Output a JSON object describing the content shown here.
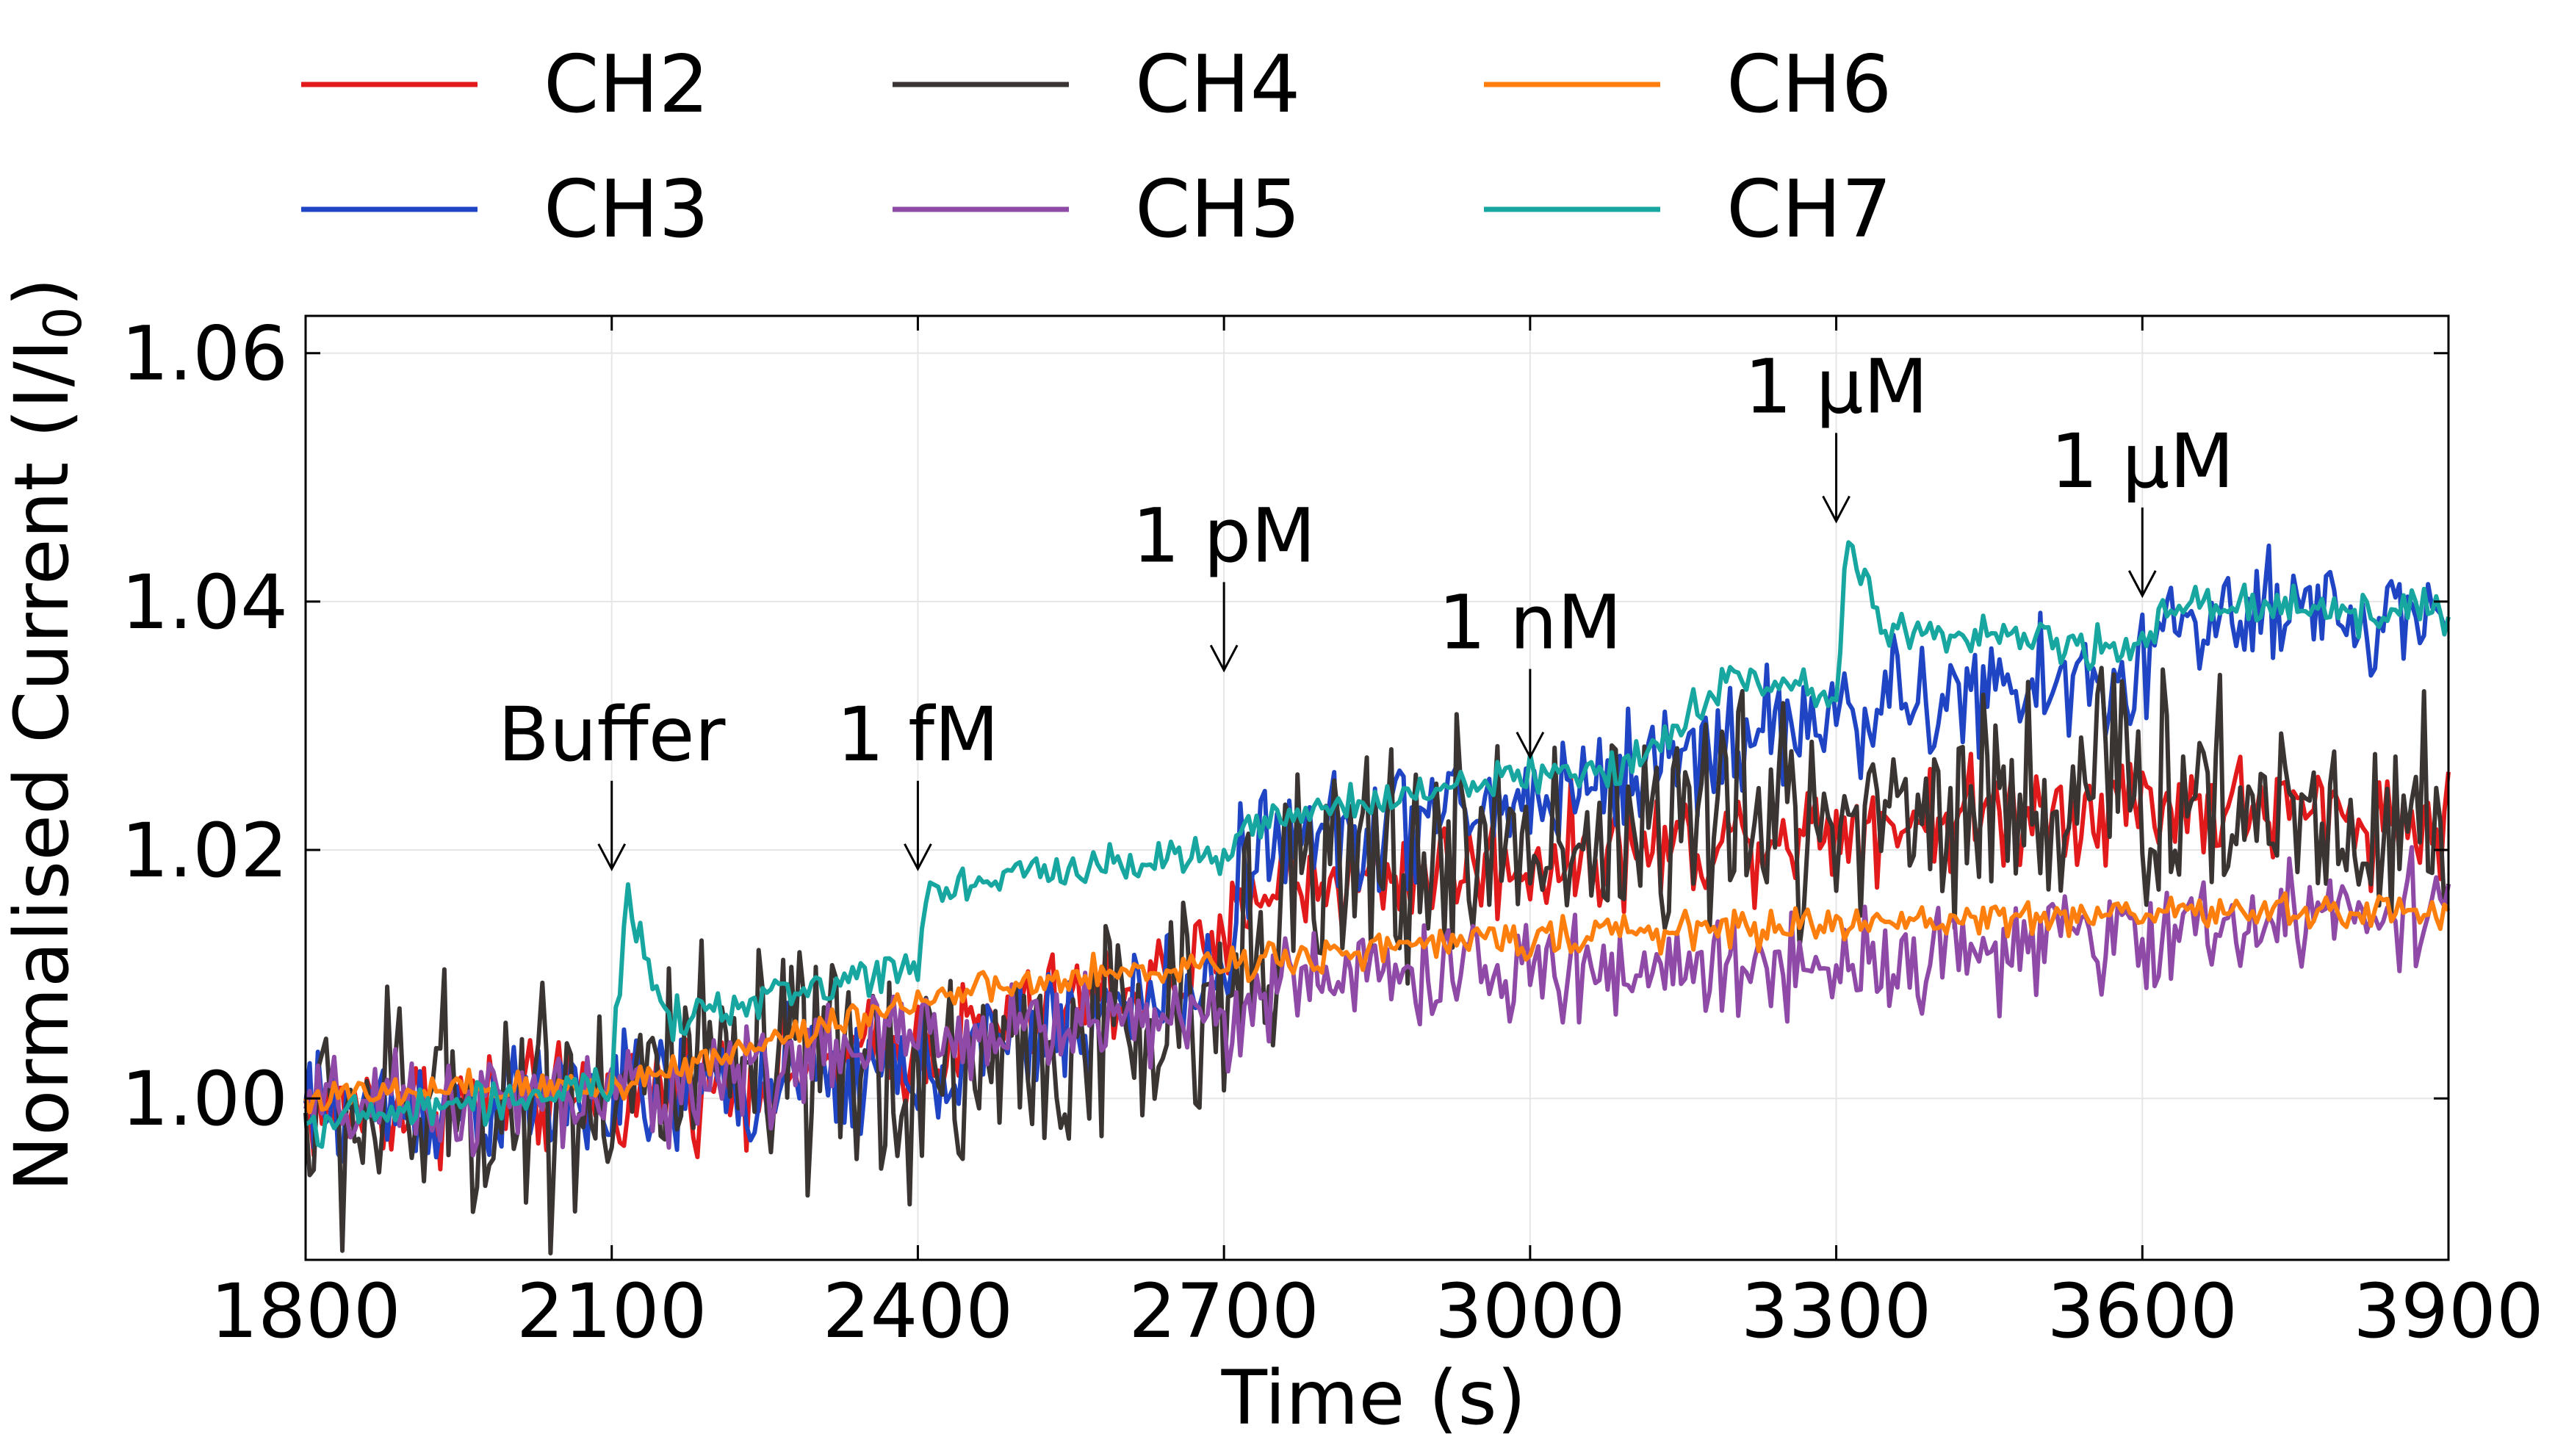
{
  "chart_data": {
    "type": "line",
    "title": "",
    "xlabel": "Time (s)",
    "ylabel_main": "Normalised Current (I/I",
    "ylabel_sub": "0",
    "ylabel_end": ")",
    "xlim": [
      1800,
      3900
    ],
    "ylim": [
      0.987,
      1.063
    ],
    "xticks": [
      1800,
      2100,
      2400,
      2700,
      3000,
      3300,
      3600,
      3900
    ],
    "xtick_labels": [
      "1800",
      "2100",
      "2400",
      "2700",
      "3000",
      "3300",
      "3600",
      "3900"
    ],
    "yticks": [
      1.0,
      1.02,
      1.04,
      1.06
    ],
    "ytick_labels": [
      "1.00",
      "1.02",
      "1.04",
      "1.06"
    ],
    "grid": true,
    "legend_position": "top, above plot, 3 columns",
    "legend": [
      {
        "label": "CH2",
        "color": "#e31a1c"
      },
      {
        "label": "CH3",
        "color": "#1f45c4"
      },
      {
        "label": "CH4",
        "color": "#3a3532"
      },
      {
        "label": "CH5",
        "color": "#8e4aa6"
      },
      {
        "label": "CH6",
        "color": "#ff7f0e"
      },
      {
        "label": "CH7",
        "color": "#17a6a0"
      }
    ],
    "series": [
      {
        "name": "CH2",
        "color": "#e31a1c",
        "noise": 0.0022,
        "x": [
          1800,
          2100,
          2400,
          2700,
          2720,
          3000,
          3300,
          3600,
          3900
        ],
        "y": [
          0.999,
          1.0,
          1.004,
          1.011,
          1.017,
          1.019,
          1.022,
          1.024,
          1.022
        ]
      },
      {
        "name": "CH3",
        "color": "#1f45c4",
        "noise": 0.0025,
        "x": [
          1800,
          2100,
          2400,
          2700,
          2720,
          3000,
          3200,
          3300,
          3600,
          3620,
          3900
        ],
        "y": [
          0.999,
          1.0,
          1.002,
          1.01,
          1.02,
          1.024,
          1.029,
          1.031,
          1.034,
          1.038,
          1.039
        ]
      },
      {
        "name": "CH4",
        "color": "#3a3532",
        "noise": 0.005,
        "x": [
          1800,
          2100,
          2400,
          2700,
          2720,
          3000,
          3300,
          3600,
          3900
        ],
        "y": [
          0.998,
          1.001,
          1.002,
          1.006,
          1.016,
          1.021,
          1.023,
          1.025,
          1.022
        ]
      },
      {
        "name": "CH5",
        "color": "#8e4aa6",
        "noise": 0.002,
        "x": [
          1800,
          2100,
          2400,
          2700,
          2800,
          3000,
          3300,
          3600,
          3900
        ],
        "y": [
          0.999,
          1.0,
          1.005,
          1.007,
          1.01,
          1.01,
          1.011,
          1.013,
          1.016
        ]
      },
      {
        "name": "CH6",
        "color": "#ff7f0e",
        "noise": 0.0007,
        "x": [
          1800,
          2100,
          2400,
          2700,
          3000,
          3300,
          3600,
          3900
        ],
        "y": [
          1.0,
          1.001,
          1.008,
          1.011,
          1.013,
          1.014,
          1.015,
          1.015
        ]
      },
      {
        "name": "CH7",
        "color": "#17a6a0",
        "noise": 0.0008,
        "x": [
          1800,
          2100,
          2115,
          2150,
          2400,
          2410,
          2700,
          2720,
          3000,
          3100,
          3200,
          3300,
          3310,
          3350,
          3600,
          3620,
          3900
        ],
        "y": [
          0.998,
          1.001,
          1.017,
          1.006,
          1.011,
          1.017,
          1.02,
          1.022,
          1.026,
          1.027,
          1.034,
          1.032,
          1.046,
          1.038,
          1.036,
          1.04,
          1.039
        ]
      }
    ],
    "annotations": [
      {
        "text": "Buffer",
        "x": 2100,
        "y": 1.018
      },
      {
        "text": "1 fM",
        "x": 2400,
        "y": 1.018
      },
      {
        "text": "1 pM",
        "x": 2700,
        "y": 1.034
      },
      {
        "text": "1 nM",
        "x": 3000,
        "y": 1.027
      },
      {
        "text": "1 μM",
        "x": 3300,
        "y": 1.046
      },
      {
        "text": "1 μM",
        "x": 3600,
        "y": 1.04
      }
    ]
  }
}
